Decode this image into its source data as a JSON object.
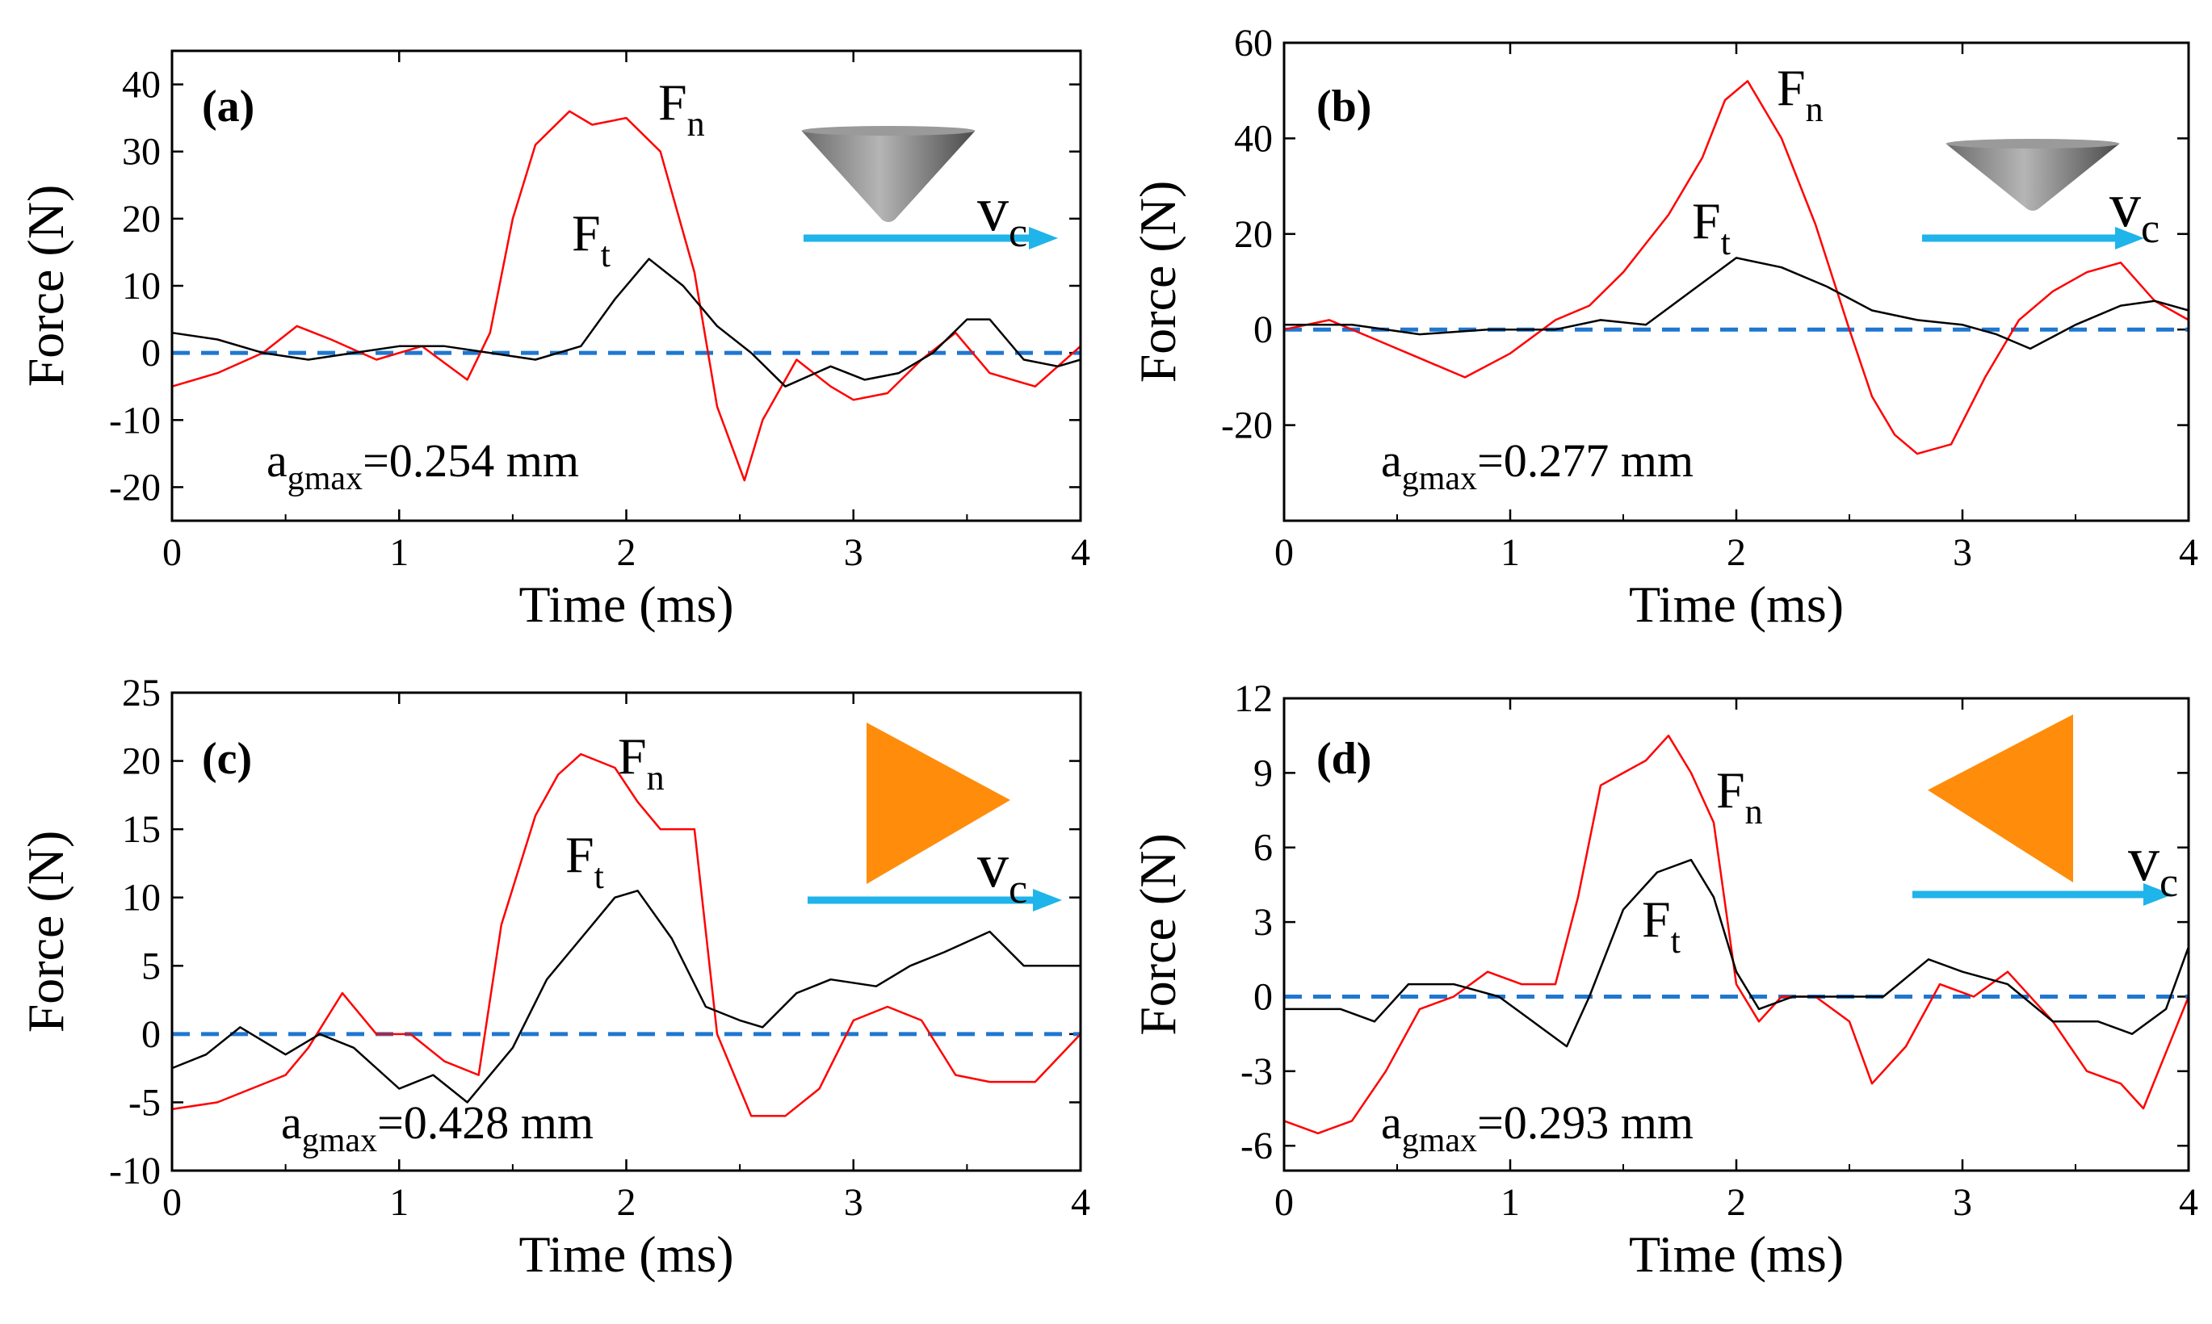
{
  "chart_data": [
    {
      "type": "line",
      "panel_label": "(a)",
      "xlabel": "Time (ms)",
      "ylabel": "Force (N)",
      "xlim": [
        0,
        4
      ],
      "ylim": [
        -25,
        45
      ],
      "xticks": [
        0,
        1,
        2,
        3,
        4
      ],
      "yticks": [
        -20,
        -10,
        0,
        10,
        20,
        30,
        40
      ],
      "baseline": 0,
      "annotation": {
        "main": "a",
        "sub": "gmax",
        "value": "=0.254 mm"
      },
      "label_n": {
        "main": "F",
        "sub": "n"
      },
      "label_t": {
        "main": "F",
        "sub": "t"
      },
      "velocity": {
        "main": "v",
        "sub": "c"
      },
      "tool": "cone",
      "series": [
        {
          "name": "Fn",
          "color": "#ff0000",
          "x": [
            0,
            0.2,
            0.4,
            0.55,
            0.7,
            0.9,
            1.1,
            1.3,
            1.4,
            1.5,
            1.6,
            1.75,
            1.85,
            2.0,
            2.15,
            2.3,
            2.4,
            2.52,
            2.6,
            2.75,
            2.9,
            3.0,
            3.15,
            3.3,
            3.45,
            3.6,
            3.8,
            4.0
          ],
          "y": [
            -5,
            -3,
            0,
            4,
            2,
            -1,
            1,
            -4,
            3,
            20,
            31,
            36,
            34,
            35,
            30,
            12,
            -8,
            -19,
            -10,
            -1,
            -5,
            -7,
            -6,
            -1,
            3,
            -3,
            -5,
            1
          ]
        },
        {
          "name": "Ft",
          "color": "#000000",
          "x": [
            0,
            0.2,
            0.4,
            0.6,
            0.8,
            1.0,
            1.2,
            1.4,
            1.6,
            1.8,
            1.95,
            2.1,
            2.25,
            2.4,
            2.55,
            2.7,
            2.9,
            3.05,
            3.2,
            3.35,
            3.5,
            3.6,
            3.75,
            3.9,
            4.0
          ],
          "y": [
            3,
            2,
            0,
            -1,
            0,
            1,
            1,
            0,
            -1,
            1,
            8,
            14,
            10,
            4,
            0,
            -5,
            -2,
            -4,
            -3,
            0,
            5,
            5,
            -1,
            -2,
            -1
          ]
        }
      ]
    },
    {
      "type": "line",
      "panel_label": "(b)",
      "xlabel": "Time (ms)",
      "ylabel": "Force (N)",
      "xlim": [
        0,
        4
      ],
      "ylim": [
        -40,
        60
      ],
      "xticks": [
        0,
        1,
        2,
        3,
        4
      ],
      "yticks": [
        -20,
        0,
        20,
        40,
        60
      ],
      "baseline": 0,
      "annotation": {
        "main": "a",
        "sub": "gmax",
        "value": "=0.277 mm"
      },
      "label_n": {
        "main": "F",
        "sub": "n"
      },
      "label_t": {
        "main": "F",
        "sub": "t"
      },
      "velocity": {
        "main": "v",
        "sub": "c"
      },
      "tool": "cone",
      "series": [
        {
          "name": "Fn",
          "color": "#ff0000",
          "x": [
            0,
            0.2,
            0.4,
            0.6,
            0.8,
            1.0,
            1.2,
            1.35,
            1.5,
            1.7,
            1.85,
            1.95,
            2.05,
            2.2,
            2.35,
            2.5,
            2.6,
            2.7,
            2.8,
            2.95,
            3.1,
            3.25,
            3.4,
            3.55,
            3.7,
            3.85,
            4.0
          ],
          "y": [
            0,
            2,
            -2,
            -6,
            -10,
            -5,
            2,
            5,
            12,
            24,
            36,
            48,
            52,
            40,
            22,
            0,
            -14,
            -22,
            -26,
            -24,
            -10,
            2,
            8,
            12,
            14,
            6,
            2
          ]
        },
        {
          "name": "Ft",
          "color": "#000000",
          "x": [
            0,
            0.3,
            0.6,
            0.9,
            1.2,
            1.4,
            1.6,
            1.8,
            2.0,
            2.2,
            2.4,
            2.6,
            2.8,
            3.0,
            3.15,
            3.3,
            3.5,
            3.7,
            3.85,
            4.0
          ],
          "y": [
            1,
            1,
            -1,
            0,
            0,
            2,
            1,
            8,
            15,
            13,
            9,
            4,
            2,
            1,
            -1,
            -4,
            1,
            5,
            6,
            4
          ]
        }
      ]
    },
    {
      "type": "line",
      "panel_label": "(c)",
      "xlabel": "Time (ms)",
      "ylabel": "Force (N)",
      "xlim": [
        0,
        4
      ],
      "ylim": [
        -10,
        25
      ],
      "xticks": [
        0,
        1,
        2,
        3,
        4
      ],
      "yticks": [
        -10,
        -5,
        0,
        5,
        10,
        15,
        20,
        25
      ],
      "baseline": 0,
      "annotation": {
        "main": "a",
        "sub": "gmax",
        "value": "=0.428 mm"
      },
      "label_n": {
        "main": "F",
        "sub": "n"
      },
      "label_t": {
        "main": "F",
        "sub": "t"
      },
      "velocity": {
        "main": "v",
        "sub": "c"
      },
      "tool": "triangle-right",
      "series": [
        {
          "name": "Fn",
          "color": "#ff0000",
          "x": [
            0,
            0.2,
            0.35,
            0.5,
            0.6,
            0.75,
            0.9,
            1.05,
            1.2,
            1.35,
            1.45,
            1.6,
            1.7,
            1.8,
            1.95,
            2.05,
            2.15,
            2.3,
            2.4,
            2.55,
            2.7,
            2.85,
            3.0,
            3.15,
            3.3,
            3.45,
            3.6,
            3.8,
            4.0
          ],
          "y": [
            -5.5,
            -5,
            -4,
            -3,
            -1,
            3,
            0,
            0,
            -2,
            -3,
            8,
            16,
            19,
            20.5,
            19.5,
            17,
            15,
            15,
            0,
            -6,
            -6,
            -4,
            1,
            2,
            1,
            -3,
            -3.5,
            -3.5,
            0
          ]
        },
        {
          "name": "Ft",
          "color": "#000000",
          "x": [
            0,
            0.15,
            0.3,
            0.5,
            0.65,
            0.8,
            1.0,
            1.15,
            1.3,
            1.5,
            1.65,
            1.8,
            1.95,
            2.05,
            2.2,
            2.35,
            2.5,
            2.6,
            2.75,
            2.9,
            3.1,
            3.25,
            3.4,
            3.6,
            3.75,
            4.0
          ],
          "y": [
            -2.5,
            -1.5,
            0.5,
            -1.5,
            0,
            -1,
            -4,
            -3,
            -5,
            -1,
            4,
            7,
            10,
            10.5,
            7,
            2,
            1,
            0.5,
            3,
            4,
            3.5,
            5,
            6,
            7.5,
            5,
            5
          ]
        }
      ]
    },
    {
      "type": "line",
      "panel_label": "(d)",
      "xlabel": "Time (ms)",
      "ylabel": "Force (N)",
      "xlim": [
        0,
        4
      ],
      "ylim": [
        -7,
        12
      ],
      "xticks": [
        0,
        1,
        2,
        3,
        4
      ],
      "yticks": [
        -6,
        -3,
        0,
        3,
        6,
        9,
        12
      ],
      "baseline": 0,
      "annotation": {
        "main": "a",
        "sub": "gmax",
        "value": "=0.293 mm"
      },
      "label_n": {
        "main": "F",
        "sub": "n"
      },
      "label_t": {
        "main": "F",
        "sub": "t"
      },
      "velocity": {
        "main": "v",
        "sub": "c"
      },
      "tool": "triangle-left",
      "series": [
        {
          "name": "Fn",
          "color": "#ff0000",
          "x": [
            0,
            0.15,
            0.3,
            0.45,
            0.6,
            0.75,
            0.9,
            1.05,
            1.2,
            1.3,
            1.4,
            1.5,
            1.6,
            1.7,
            1.8,
            1.9,
            2.0,
            2.1,
            2.2,
            2.35,
            2.5,
            2.6,
            2.75,
            2.9,
            3.05,
            3.2,
            3.4,
            3.55,
            3.7,
            3.8,
            4.0
          ],
          "y": [
            -5,
            -5.5,
            -5,
            -3,
            -0.5,
            0,
            1,
            0.5,
            0.5,
            4,
            8.5,
            9,
            9.5,
            10.5,
            9,
            7,
            0.5,
            -1,
            0,
            0,
            -1,
            -3.5,
            -2,
            0.5,
            0,
            1,
            -1,
            -3,
            -3.5,
            -4.5,
            0
          ]
        },
        {
          "name": "Ft",
          "color": "#000000",
          "x": [
            0,
            0.25,
            0.4,
            0.55,
            0.75,
            0.95,
            1.1,
            1.25,
            1.35,
            1.5,
            1.65,
            1.8,
            1.9,
            2.0,
            2.1,
            2.25,
            2.45,
            2.65,
            2.85,
            3.0,
            3.2,
            3.4,
            3.6,
            3.75,
            3.9,
            4.0
          ],
          "y": [
            -0.5,
            -0.5,
            -1,
            0.5,
            0.5,
            0,
            -1,
            -2,
            0,
            3.5,
            5,
            5.5,
            4,
            1,
            -0.5,
            0,
            0,
            0,
            1.5,
            1,
            0.5,
            -1,
            -1,
            -1.5,
            -0.5,
            2
          ]
        }
      ]
    }
  ]
}
